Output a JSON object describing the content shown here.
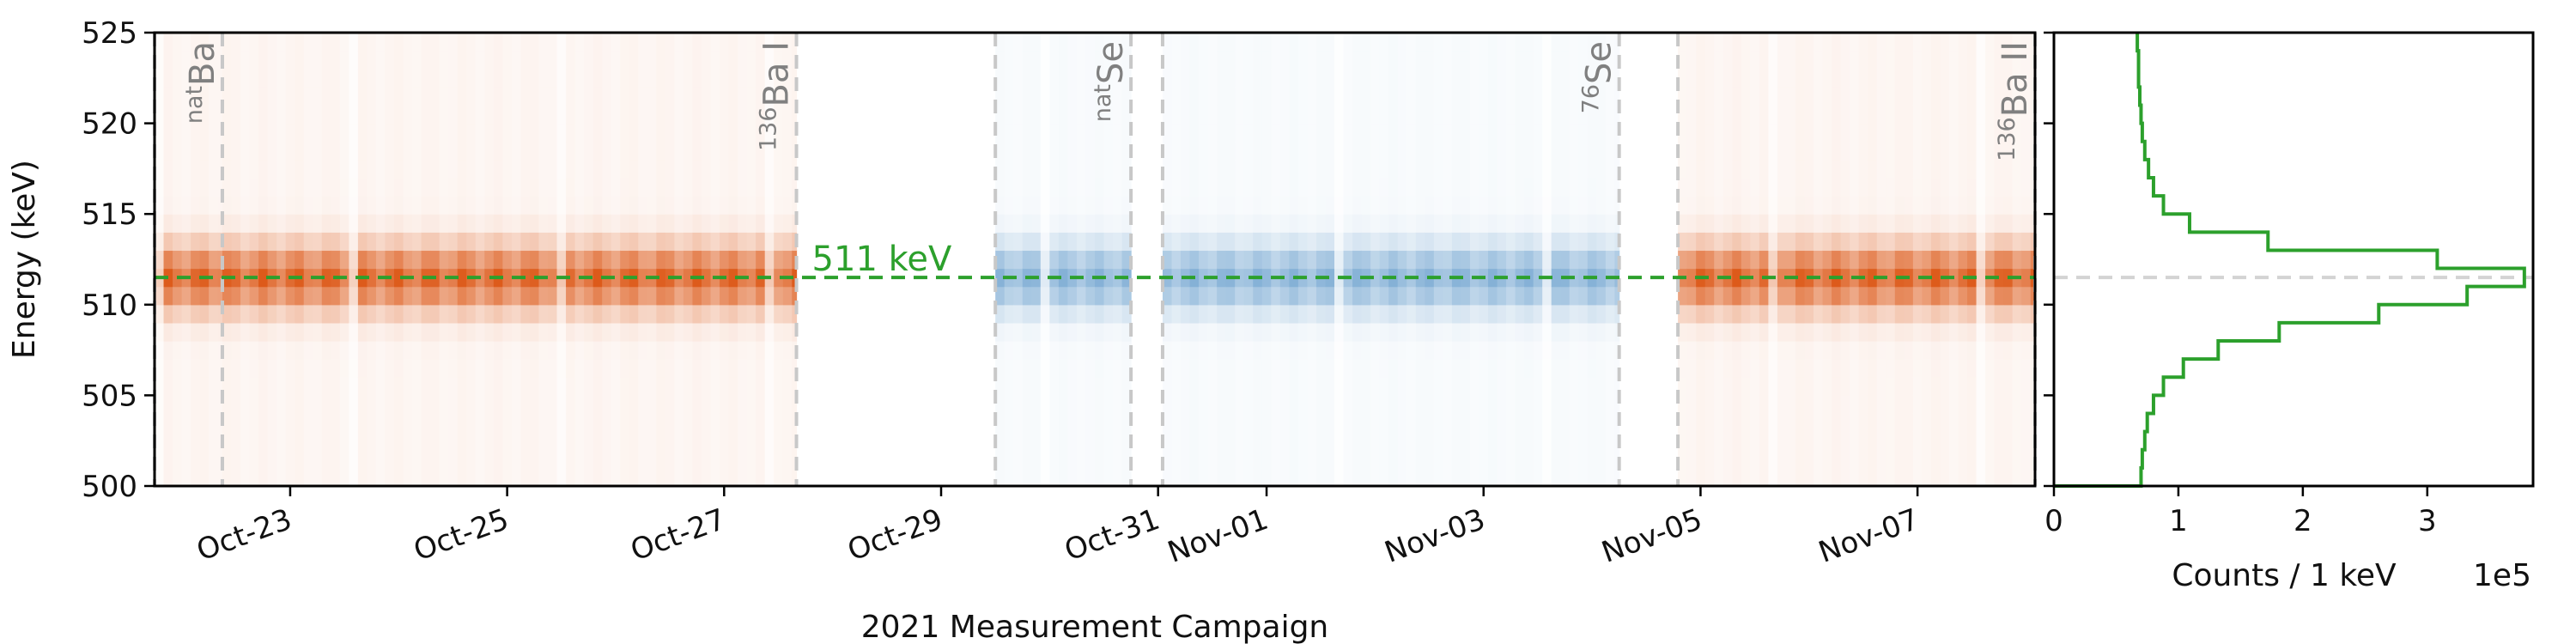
{
  "chart_data": [
    {
      "type": "heatmap",
      "xlabel": "2021 Measurement Campaign",
      "ylabel": "Energy (keV)",
      "ylim": [
        500,
        525
      ],
      "x_range": [
        "2021-10-21T18:00",
        "2021-11-08T02:00"
      ],
      "x_ticks": [
        {
          "date": "2021-10-23",
          "label": "Oct-23"
        },
        {
          "date": "2021-10-25",
          "label": "Oct-25"
        },
        {
          "date": "2021-10-27",
          "label": "Oct-27"
        },
        {
          "date": "2021-10-29",
          "label": "Oct-29"
        },
        {
          "date": "2021-10-31",
          "label": "Oct-31"
        },
        {
          "date": "2021-11-01",
          "label": "Nov-01"
        },
        {
          "date": "2021-11-03",
          "label": "Nov-03"
        },
        {
          "date": "2021-11-05",
          "label": "Nov-05"
        },
        {
          "date": "2021-11-07",
          "label": "Nov-07"
        }
      ],
      "y_ticks": [
        500,
        505,
        510,
        515,
        520,
        525
      ],
      "runs": [
        {
          "sup": "nat",
          "name": "Ba",
          "start": "2021-10-21T18:00",
          "end": "2021-10-22T09:00",
          "colormap": "orange"
        },
        {
          "sup": "136",
          "name": "Ba I",
          "start": "2021-10-22T09:00",
          "end": "2021-10-27T16:00",
          "colormap": "orange"
        },
        {
          "sup": "nat",
          "name": "Se",
          "start": "2021-10-29T12:00",
          "end": "2021-10-30T18:00",
          "colormap": "blue"
        },
        {
          "sup": "76",
          "name": "Se",
          "start": "2021-10-31T01:00",
          "end": "2021-11-04T06:00",
          "colormap": "blue"
        },
        {
          "sup": "136",
          "name": "Ba II",
          "start": "2021-11-04T19:00",
          "end": "2021-11-08T02:00",
          "colormap": "orange"
        }
      ],
      "peak_energy": 511,
      "peak_line": {
        "value": 511.5,
        "label": "511 keV",
        "color": "#2ca02c"
      },
      "colors": {
        "orange": "#d94801",
        "blue": "#2171b5",
        "boundary": "#c8c8c8"
      }
    },
    {
      "type": "line",
      "xlabel": "Counts / 1 keV",
      "x_scale_label": "1e5",
      "ylim": [
        500,
        525
      ],
      "xlim": [
        0,
        3.85
      ],
      "x_ticks": [
        0,
        1,
        2,
        3
      ],
      "color": "#2ca02c",
      "reference_line": 511.5,
      "bins": [
        {
          "lo": 500,
          "hi": 501,
          "value": 0.7
        },
        {
          "lo": 501,
          "hi": 502,
          "value": 0.71
        },
        {
          "lo": 502,
          "hi": 503,
          "value": 0.73
        },
        {
          "lo": 503,
          "hi": 504,
          "value": 0.75
        },
        {
          "lo": 504,
          "hi": 505,
          "value": 0.8
        },
        {
          "lo": 505,
          "hi": 506,
          "value": 0.88
        },
        {
          "lo": 506,
          "hi": 507,
          "value": 1.04
        },
        {
          "lo": 507,
          "hi": 508,
          "value": 1.32
        },
        {
          "lo": 508,
          "hi": 509,
          "value": 1.81
        },
        {
          "lo": 509,
          "hi": 510,
          "value": 2.61
        },
        {
          "lo": 510,
          "hi": 511,
          "value": 3.32
        },
        {
          "lo": 511,
          "hi": 512,
          "value": 3.78
        },
        {
          "lo": 512,
          "hi": 513,
          "value": 3.08
        },
        {
          "lo": 513,
          "hi": 514,
          "value": 1.72
        },
        {
          "lo": 514,
          "hi": 515,
          "value": 1.09
        },
        {
          "lo": 515,
          "hi": 516,
          "value": 0.88
        },
        {
          "lo": 516,
          "hi": 517,
          "value": 0.8
        },
        {
          "lo": 517,
          "hi": 518,
          "value": 0.76
        },
        {
          "lo": 518,
          "hi": 519,
          "value": 0.73
        },
        {
          "lo": 519,
          "hi": 520,
          "value": 0.71
        },
        {
          "lo": 520,
          "hi": 521,
          "value": 0.7
        },
        {
          "lo": 521,
          "hi": 522,
          "value": 0.69
        },
        {
          "lo": 522,
          "hi": 523,
          "value": 0.68
        },
        {
          "lo": 523,
          "hi": 524,
          "value": 0.68
        },
        {
          "lo": 524,
          "hi": 525,
          "value": 0.67
        }
      ]
    }
  ]
}
